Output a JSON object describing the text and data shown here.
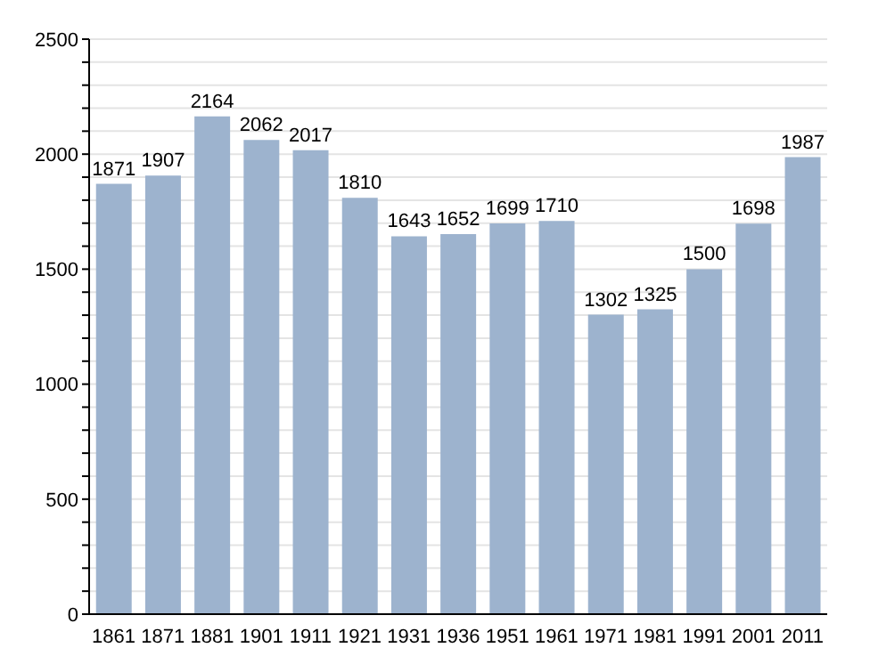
{
  "chart_data": {
    "type": "bar",
    "categories": [
      "1861",
      "1871",
      "1881",
      "1901",
      "1911",
      "1921",
      "1931",
      "1936",
      "1951",
      "1961",
      "1971",
      "1981",
      "1991",
      "2001",
      "2011"
    ],
    "values": [
      1871,
      1907,
      2164,
      2062,
      2017,
      1810,
      1643,
      1652,
      1699,
      1710,
      1302,
      1325,
      1500,
      1698,
      1987
    ],
    "color": "#9db3ce",
    "data_labels": true,
    "grid": "y",
    "ylim": [
      0,
      2500
    ],
    "yticks": [
      0,
      {
        "value": 100,
        "label": null
      },
      {
        "value": 200,
        "label": null
      },
      {
        "value": 300,
        "label": null
      },
      {
        "value": 400,
        "label": null
      },
      500,
      {
        "value": 600,
        "label": null
      },
      {
        "value": 700,
        "label": null
      },
      {
        "value": 800,
        "label": null
      },
      {
        "value": 900,
        "label": null
      },
      1000,
      {
        "value": 1100,
        "label": null
      },
      {
        "value": 1200,
        "label": null
      },
      {
        "value": 1300,
        "label": null
      },
      {
        "value": 1400,
        "label": null
      },
      1500,
      {
        "value": 1600,
        "label": null
      },
      {
        "value": 1700,
        "label": null
      },
      {
        "value": 1800,
        "label": null
      },
      {
        "value": 1900,
        "label": null
      },
      2000,
      {
        "value": 2100,
        "label": null
      },
      {
        "value": 2200,
        "label": null
      },
      {
        "value": 2300,
        "label": null
      },
      {
        "value": 2400,
        "label": null
      },
      2500
    ]
  }
}
